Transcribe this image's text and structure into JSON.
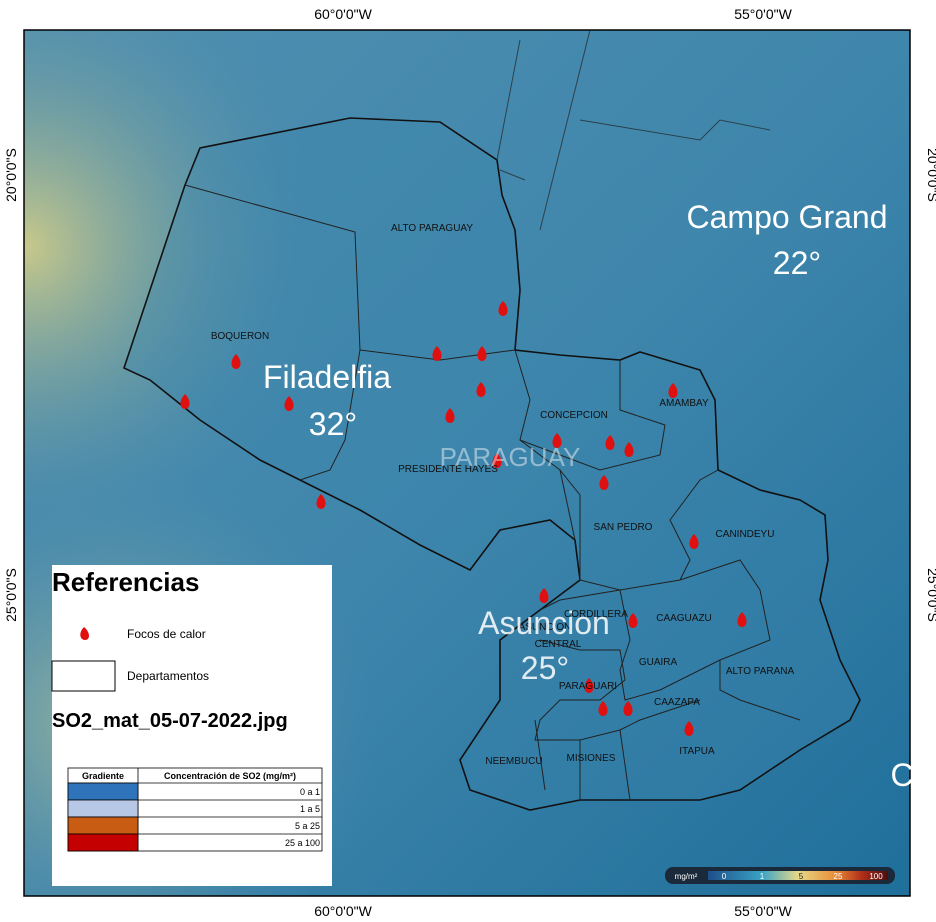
{
  "axes": {
    "top": [
      "60°0'0\"W",
      "55°0'0\"W"
    ],
    "bottom": [
      "60°0'0\"W",
      "55°0'0\"W"
    ],
    "left": [
      "20°0'0\"S",
      "25°0'0\"S"
    ],
    "right": [
      "20°0'0\"S",
      "25°0'0\"S"
    ]
  },
  "departments": [
    "ALTO PARAGUAY",
    "BOQUERON",
    "PRESIDENTE HAYES",
    "CONCEPCION",
    "AMAMBAY",
    "SAN PEDRO",
    "CANINDEYU",
    "CORDILLERA",
    "ASUNCION",
    "CENTRAL",
    "CAAGUAZU",
    "GUAIRA",
    "ALTO PARANA",
    "PARAGUARI",
    "CAAZAPA",
    "ITAPUA",
    "NEEMBUCU",
    "MISIONES"
  ],
  "places": {
    "filadelfia": "Filadelfia",
    "filadelfia_temp": "32°",
    "campo_grande": "Campo Grand",
    "campo_grande_temp": "22°",
    "asuncion": "Asuncion",
    "asuncion_temp": "25°",
    "country": "PARAGUAY",
    "edge": "C"
  },
  "legend": {
    "title": "Referencias",
    "fires": "Focos de calor",
    "departments": "Departamentos",
    "file": "SO2_mat_05-07-2022.jpg",
    "table": {
      "headers": [
        "Gradiente",
        "Concentración de SO2 (mg/m²)"
      ],
      "rows": [
        "0 a 1",
        "1 a 5",
        "5 a 25",
        "25 a 100"
      ]
    }
  },
  "colorbar": {
    "unit": "mg/m²",
    "labels": [
      "0",
      "1",
      "5",
      "25",
      "100"
    ]
  }
}
